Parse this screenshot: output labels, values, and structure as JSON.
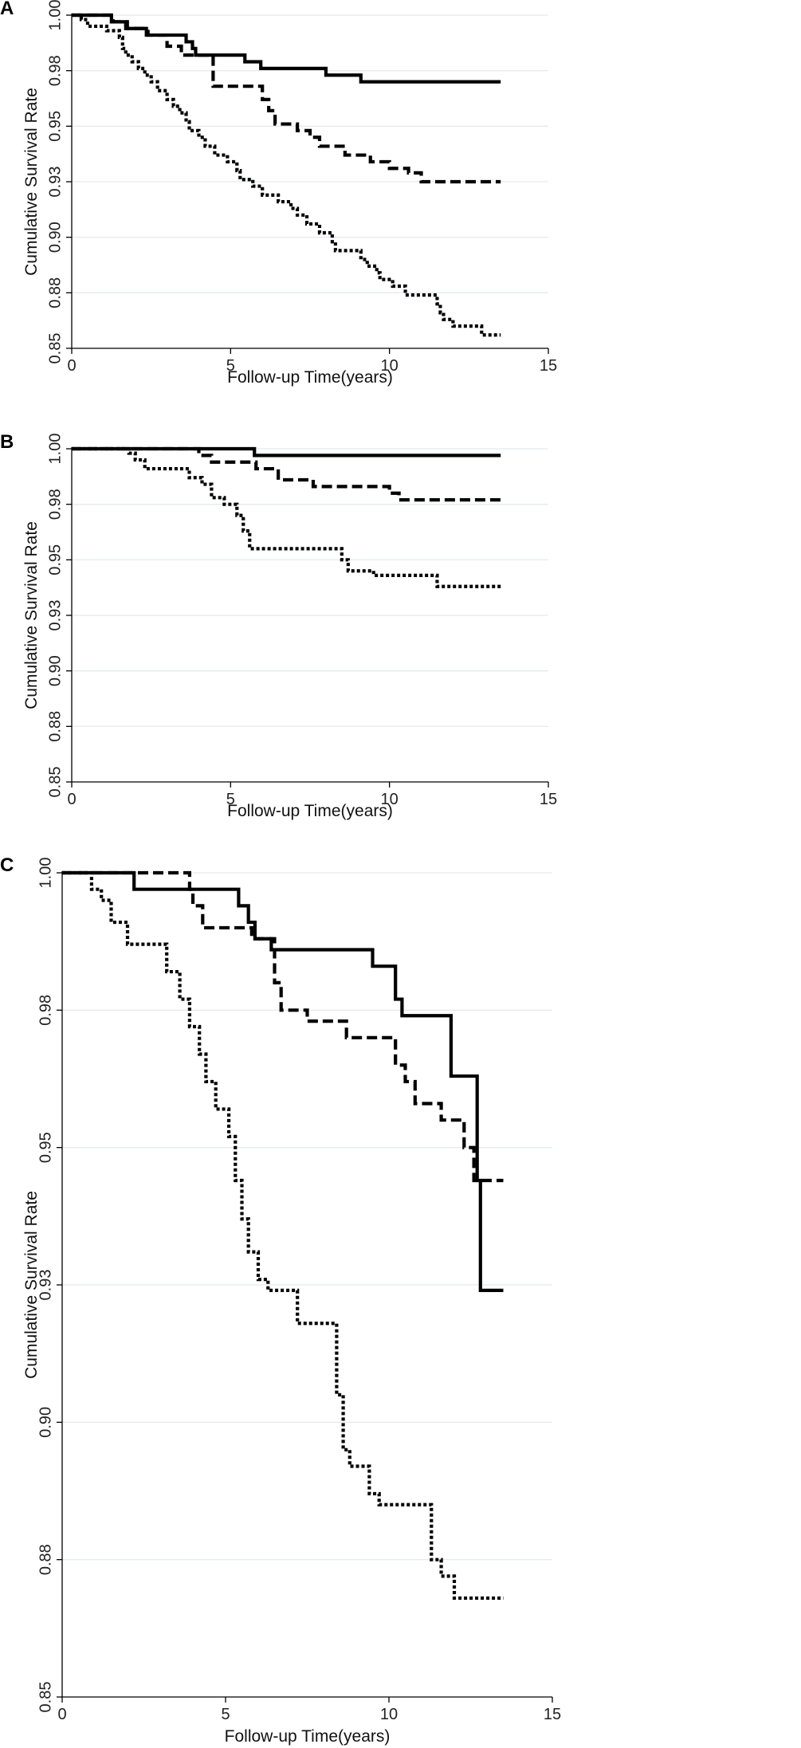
{
  "chart_data": [
    {
      "panel_label": "A",
      "type": "line",
      "step": true,
      "xlabel": "Follow-up Time(years)",
      "ylabel": "Cumulative Survival Rate",
      "xlim": [
        0,
        15
      ],
      "ylim": [
        0.85,
        1.0
      ],
      "xticks": [
        "0",
        "5",
        "10",
        "15"
      ],
      "yticks": [
        "0.85",
        "0.88",
        "0.90",
        "0.93",
        "0.95",
        "0.98",
        "1.00"
      ],
      "grid": true,
      "series": [
        {
          "name": "solid",
          "style": "solid",
          "x": [
            0,
            1.25,
            1.7,
            2.35,
            3.6,
            3.8,
            3.9,
            5.45,
            5.95,
            8.0,
            9.1,
            13.5
          ],
          "y": [
            1.0,
            0.997,
            0.994,
            0.991,
            0.988,
            0.985,
            0.982,
            0.979,
            0.976,
            0.973,
            0.97,
            0.97
          ]
        },
        {
          "name": "dashed",
          "style": "dashed",
          "x": [
            0,
            1.3,
            1.75,
            2.4,
            3.0,
            3.45,
            4.45,
            6.0,
            6.2,
            6.4,
            7.1,
            7.5,
            7.8,
            8.6,
            9.4,
            10.0,
            10.6,
            11.0,
            13.5
          ],
          "y": [
            1.0,
            0.997,
            0.994,
            0.991,
            0.986,
            0.982,
            0.968,
            0.962,
            0.957,
            0.951,
            0.948,
            0.945,
            0.941,
            0.937,
            0.934,
            0.931,
            0.929,
            0.925,
            0.925
          ]
        },
        {
          "name": "dotted",
          "style": "dotted",
          "x": [
            0,
            0.3,
            0.5,
            1.1,
            1.5,
            1.6,
            1.7,
            1.9,
            2.1,
            2.3,
            2.5,
            2.7,
            3.0,
            3.2,
            3.4,
            3.6,
            3.7,
            4.0,
            4.2,
            4.5,
            4.9,
            5.2,
            5.3,
            5.7,
            6.0,
            6.5,
            6.9,
            7.1,
            7.4,
            7.8,
            8.2,
            8.3,
            9.1,
            9.3,
            9.6,
            9.7,
            10.1,
            10.5,
            11.5,
            11.6,
            11.7,
            12.0,
            12.9,
            13.5
          ],
          "y": [
            1.0,
            0.998,
            0.995,
            0.993,
            0.99,
            0.985,
            0.982,
            0.979,
            0.976,
            0.973,
            0.97,
            0.966,
            0.962,
            0.959,
            0.956,
            0.952,
            0.948,
            0.945,
            0.941,
            0.937,
            0.934,
            0.93,
            0.926,
            0.923,
            0.919,
            0.916,
            0.913,
            0.91,
            0.906,
            0.902,
            0.898,
            0.894,
            0.89,
            0.887,
            0.884,
            0.881,
            0.878,
            0.874,
            0.87,
            0.866,
            0.863,
            0.86,
            0.856,
            0.856
          ]
        }
      ]
    },
    {
      "panel_label": "B",
      "type": "line",
      "step": true,
      "xlabel": "Follow-up Time(years)",
      "ylabel": "Cumulative Survival Rate",
      "xlim": [
        0,
        15
      ],
      "ylim": [
        0.85,
        1.0
      ],
      "xticks": [
        "0",
        "5",
        "10",
        "15"
      ],
      "yticks": [
        "0.85",
        "0.88",
        "0.90",
        "0.93",
        "0.95",
        "0.98",
        "1.00"
      ],
      "grid": true,
      "series": [
        {
          "name": "solid",
          "style": "solid",
          "x": [
            0,
            5.75,
            13.5
          ],
          "y": [
            1.0,
            0.997,
            0.997
          ]
        },
        {
          "name": "dashed",
          "style": "dashed",
          "x": [
            0,
            4.0,
            4.4,
            5.8,
            6.5,
            7.6,
            10.0,
            10.3,
            13.5
          ],
          "y": [
            1.0,
            0.997,
            0.994,
            0.991,
            0.986,
            0.983,
            0.98,
            0.977,
            0.977
          ]
        },
        {
          "name": "dotted",
          "style": "dotted",
          "x": [
            0,
            1.8,
            2.0,
            2.3,
            3.7,
            4.1,
            4.4,
            4.8,
            5.2,
            5.4,
            5.6,
            8.5,
            8.7,
            9.5,
            11.5,
            13.5
          ],
          "y": [
            1.0,
            0.998,
            0.995,
            0.991,
            0.987,
            0.984,
            0.978,
            0.975,
            0.97,
            0.963,
            0.955,
            0.95,
            0.945,
            0.943,
            0.938,
            0.938
          ]
        }
      ]
    },
    {
      "panel_label": "C",
      "type": "line",
      "step": true,
      "xlabel": "Follow-up Time(years)",
      "ylabel": "Cumulative Survival Rate",
      "xlim": [
        0,
        15
      ],
      "ylim": [
        0.85,
        1.0
      ],
      "xticks": [
        "0",
        "5",
        "10",
        "15"
      ],
      "yticks": [
        "0.85",
        "0.88",
        "0.90",
        "0.93",
        "0.95",
        "0.98",
        "1.00"
      ],
      "grid": true,
      "series": [
        {
          "name": "solid",
          "style": "solid",
          "x": [
            0,
            2.2,
            5.4,
            5.7,
            5.9,
            6.4,
            9.5,
            10.2,
            10.4,
            11.9,
            12.7,
            12.8,
            13.5
          ],
          "y": [
            1.0,
            0.997,
            0.994,
            0.991,
            0.988,
            0.986,
            0.983,
            0.977,
            0.974,
            0.963,
            0.944,
            0.924,
            0.924
          ]
        },
        {
          "name": "dashed",
          "style": "dashed",
          "x": [
            0,
            3.9,
            4.0,
            4.3,
            5.8,
            6.5,
            6.7,
            7.5,
            8.7,
            10.2,
            10.5,
            10.8,
            11.6,
            12.3,
            12.6,
            13.5
          ],
          "y": [
            1.0,
            0.997,
            0.994,
            0.99,
            0.988,
            0.98,
            0.975,
            0.973,
            0.97,
            0.965,
            0.962,
            0.958,
            0.955,
            0.95,
            0.944,
            0.944
          ]
        },
        {
          "name": "dotted",
          "style": "dotted",
          "x": [
            0,
            0.9,
            1.2,
            1.5,
            2.0,
            3.2,
            3.6,
            3.9,
            4.2,
            4.4,
            4.7,
            5.1,
            5.3,
            5.5,
            5.7,
            6.0,
            6.3,
            7.2,
            8.4,
            8.6,
            8.8,
            9.4,
            9.7,
            11.3,
            11.6,
            12.0,
            13.5
          ],
          "y": [
            1.0,
            0.997,
            0.995,
            0.991,
            0.987,
            0.982,
            0.977,
            0.972,
            0.967,
            0.962,
            0.957,
            0.952,
            0.944,
            0.937,
            0.931,
            0.926,
            0.924,
            0.918,
            0.905,
            0.895,
            0.892,
            0.887,
            0.885,
            0.875,
            0.872,
            0.868,
            0.868
          ]
        }
      ]
    }
  ]
}
